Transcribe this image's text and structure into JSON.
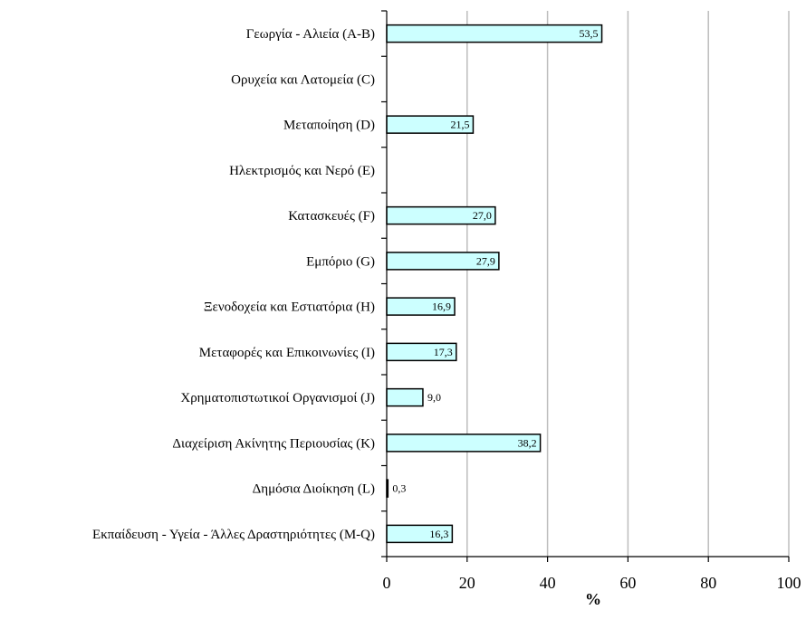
{
  "chart_data": {
    "type": "bar",
    "orientation": "horizontal",
    "categories": [
      "Γεωργία - Αλιεία (A-B)",
      "Ορυχεία και Λατομεία (C)",
      "Μεταποίηση (D)",
      "Ηλεκτρισμός και Νερό (E)",
      "Κατασκευές (F)",
      "Εμπόριο (G)",
      "Ξενοδοχεία και Εστιατόρια (H)",
      "Μεταφορές και Επικοινωνίες (I)",
      "Χρηματοπιστωτικοί Οργανισμοί (J)",
      "Διαχείριση Ακίνητης Περιουσίας (K)",
      "Δημόσια Διοίκηση (L)",
      "Εκπαίδευση - Υγεία - Άλλες Δραστηριότητες (M-Q)"
    ],
    "values": [
      53.5,
      null,
      21.5,
      null,
      27.0,
      27.9,
      16.9,
      17.3,
      9.0,
      38.2,
      0.3,
      16.3
    ],
    "data_labels": [
      "53,5",
      "",
      "21,5",
      "",
      "27,0",
      "27,9",
      "16,9",
      "17,3",
      "9,0",
      "38,2",
      "0,3",
      "16,3"
    ],
    "title": "",
    "xlabel": "%",
    "ylabel": "",
    "xlim": [
      0,
      100
    ],
    "xticks": [
      0,
      20,
      40,
      60,
      80,
      100
    ],
    "xtick_labels": [
      "0",
      "20",
      "40",
      "60",
      "80",
      "100"
    ],
    "grid": true,
    "legend": "none",
    "bar_color": "#ccffff",
    "bar_edge_color": "#000000",
    "grid_color": "#bdbdbd"
  }
}
